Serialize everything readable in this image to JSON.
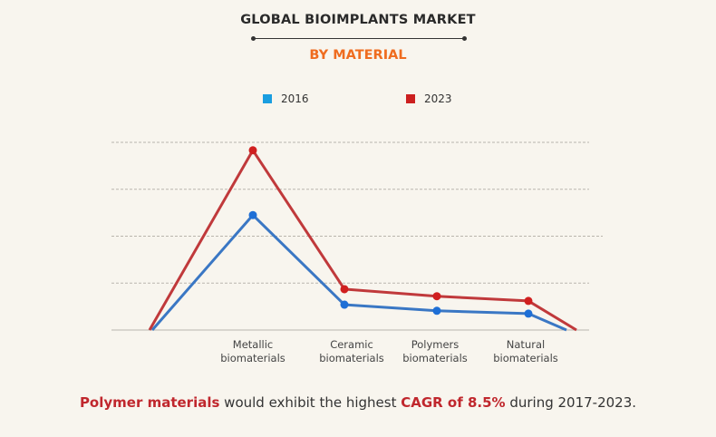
{
  "chart_data": {
    "type": "line",
    "title": "GLOBAL BIOIMPLANTS MARKET",
    "subtitle": "BY MATERIAL",
    "categories": [
      "Metallic biomaterials",
      "Ceramic biomaterials",
      "Polymers biomaterials",
      "Natural biomaterials"
    ],
    "category_lines": [
      [
        "Metallic",
        "biomaterials"
      ],
      [
        "Ceramic",
        "biomaterials"
      ],
      [
        "Polymers",
        "biomaterials"
      ],
      [
        "Natural",
        "biomaterials"
      ]
    ],
    "series": [
      {
        "name": "2016",
        "color": "#3a77c4",
        "marker_color": "#1e6fd6",
        "values": [
          2.45,
          0.54,
          0.41,
          0.35
        ]
      },
      {
        "name": "2023",
        "color": "#c0393b",
        "marker_color": "#d01f1f",
        "values": [
          3.83,
          0.87,
          0.72,
          0.62
        ]
      }
    ],
    "legend": [
      {
        "label": "2016",
        "color": "#1a9ee0"
      },
      {
        "label": "2023",
        "color": "#cc1f1f"
      }
    ],
    "xlabel": "",
    "ylabel": "",
    "ylim": [
      0,
      4
    ],
    "y_units": "relative (no y-axis labels shown)",
    "grid": true,
    "legend_position": "top-center"
  },
  "footnote": {
    "part1": "Polymer materials",
    "part2": " would exhibit the highest ",
    "part3": "CAGR of 8.5%",
    "part4": " during 2017-2023."
  },
  "colors": {
    "title": "#2a2a2a",
    "subtitle": "#ef6c1f",
    "highlight": "#c0272d",
    "background": "#f8f5ee"
  }
}
